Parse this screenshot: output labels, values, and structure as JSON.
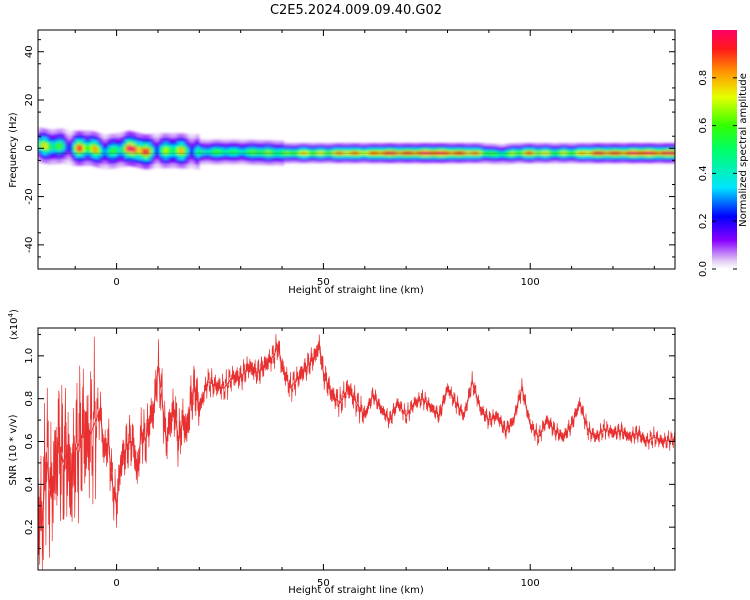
{
  "figure": {
    "title": "C2E5.2024.009.09.40.G02"
  },
  "colors": {
    "snr_line": "#e83030",
    "axes": "#000000",
    "background": "#ffffff"
  },
  "chart_data": [
    {
      "type": "heatmap",
      "title": "C2E5.2024.009.09.40.G02",
      "xlabel": "Height of straight line (km)",
      "ylabel": "Frequency (Hz)",
      "xlim": [
        -19,
        135
      ],
      "ylim": [
        -50,
        49
      ],
      "xticks": [
        0,
        50,
        100
      ],
      "xtick_labels": [
        "0",
        "50",
        "100"
      ],
      "yticks": [
        -40,
        -20,
        0,
        20,
        40
      ],
      "ytick_labels": [
        "-40",
        "-20",
        "0",
        "20",
        "40"
      ],
      "colorbar": {
        "label": "Normalized spectral amplitude",
        "range": [
          0,
          1
        ],
        "ticks": [
          0.0,
          0.2,
          0.4,
          0.6,
          0.8
        ],
        "tick_labels": [
          "0.0",
          "0.2",
          "0.4",
          "0.6",
          "0.8"
        ]
      },
      "ridge": {
        "description_points": [
          {
            "x": -19,
            "freq": 1.5,
            "amp": 0.45
          },
          {
            "x": -16,
            "freq": 0.5,
            "amp": 0.55
          },
          {
            "x": -13,
            "freq": 1.0,
            "amp": 0.4
          },
          {
            "x": -11,
            "freq": 0.0,
            "amp": 0.5
          },
          {
            "x": -9,
            "freq": 0.0,
            "amp": 0.85
          },
          {
            "x": -6,
            "freq": 0.0,
            "amp": 0.55
          },
          {
            "x": -3,
            "freq": -1.5,
            "amp": 0.5
          },
          {
            "x": 0,
            "freq": -1.0,
            "amp": 0.55
          },
          {
            "x": 3,
            "freq": 0.0,
            "amp": 0.8
          },
          {
            "x": 7,
            "freq": -1.5,
            "amp": 0.85
          },
          {
            "x": 10,
            "freq": -1.0,
            "amp": 0.5
          },
          {
            "x": 15,
            "freq": -1.0,
            "amp": 0.55
          },
          {
            "x": 20,
            "freq": -1.5,
            "amp": 0.45
          },
          {
            "x": 30,
            "freq": -1.5,
            "amp": 0.5
          },
          {
            "x": 40,
            "freq": -2.0,
            "amp": 0.6
          },
          {
            "x": 50,
            "freq": -2.0,
            "amp": 0.7
          },
          {
            "x": 60,
            "freq": -2.0,
            "amp": 0.8
          },
          {
            "x": 70,
            "freq": -2.0,
            "amp": 0.9
          },
          {
            "x": 80,
            "freq": -2.0,
            "amp": 0.95
          },
          {
            "x": 88,
            "freq": -2.0,
            "amp": 0.7
          },
          {
            "x": 93,
            "freq": -2.5,
            "amp": 0.5
          },
          {
            "x": 97,
            "freq": -2.0,
            "amp": 0.6
          },
          {
            "x": 100,
            "freq": -2.0,
            "amp": 0.85
          },
          {
            "x": 106,
            "freq": -2.0,
            "amp": 0.55
          },
          {
            "x": 112,
            "freq": -2.0,
            "amp": 0.75
          },
          {
            "x": 120,
            "freq": -2.0,
            "amp": 0.9
          },
          {
            "x": 135,
            "freq": -2.0,
            "amp": 0.95
          }
        ]
      }
    },
    {
      "type": "line",
      "xlabel": "Height of straight line (km)",
      "ylabel": "SNR (10 * v/v)",
      "y_multiplier_label": "(x10",
      "y_multiplier_exponent": "4",
      "xlim": [
        -19,
        135
      ],
      "ylim": [
        0.0,
        1.13
      ],
      "xticks": [
        0,
        50,
        100
      ],
      "xtick_labels": [
        "0",
        "50",
        "100"
      ],
      "yticks": [
        0.2,
        0.4,
        0.6,
        0.8,
        1.0
      ],
      "ytick_labels": [
        "0.2",
        "0.4",
        "0.6",
        "0.8",
        "1.0"
      ],
      "series": [
        {
          "x": [
            -19,
            -18,
            -17,
            -16,
            -15,
            -14,
            -13,
            -12,
            -11,
            -10,
            -9,
            -8,
            -7,
            -6,
            -5,
            -4,
            -3,
            -2,
            -1,
            0,
            1,
            2,
            3,
            4,
            5,
            6,
            7,
            8,
            9,
            10,
            11,
            12,
            13,
            14,
            15,
            16,
            17,
            18,
            19,
            20,
            22,
            24,
            26,
            28,
            30,
            32,
            34,
            36,
            38,
            39,
            40,
            42,
            44,
            46,
            48,
            49,
            50,
            52,
            54,
            56,
            58,
            60,
            62,
            64,
            66,
            68,
            70,
            72,
            74,
            76,
            78,
            80,
            82,
            84,
            85,
            86,
            88,
            90,
            92,
            94,
            96,
            97,
            98,
            100,
            102,
            104,
            106,
            108,
            110,
            112,
            114,
            116,
            118,
            120,
            122,
            124,
            126,
            128,
            130,
            132,
            135
          ],
          "y": [
            0.3,
            0.2,
            0.55,
            0.35,
            0.45,
            0.6,
            0.5,
            0.55,
            0.4,
            0.55,
            0.6,
            0.65,
            0.6,
            0.65,
            0.7,
            0.75,
            0.55,
            0.6,
            0.4,
            0.3,
            0.5,
            0.55,
            0.6,
            0.6,
            0.45,
            0.65,
            0.6,
            0.7,
            0.75,
            0.95,
            0.8,
            0.6,
            0.7,
            0.75,
            0.6,
            0.7,
            0.65,
            0.8,
            0.85,
            0.75,
            0.88,
            0.86,
            0.85,
            0.9,
            0.9,
            0.95,
            0.92,
            0.96,
            1.0,
            1.05,
            0.95,
            0.85,
            0.9,
            0.95,
            1.0,
            1.05,
            0.92,
            0.82,
            0.78,
            0.85,
            0.78,
            0.72,
            0.82,
            0.75,
            0.7,
            0.78,
            0.72,
            0.78,
            0.8,
            0.76,
            0.72,
            0.85,
            0.78,
            0.72,
            0.8,
            0.88,
            0.75,
            0.7,
            0.72,
            0.65,
            0.7,
            0.78,
            0.85,
            0.68,
            0.62,
            0.7,
            0.65,
            0.62,
            0.68,
            0.78,
            0.65,
            0.62,
            0.66,
            0.64,
            0.65,
            0.62,
            0.64,
            0.6,
            0.62,
            0.6,
            0.61
          ]
        }
      ]
    }
  ]
}
